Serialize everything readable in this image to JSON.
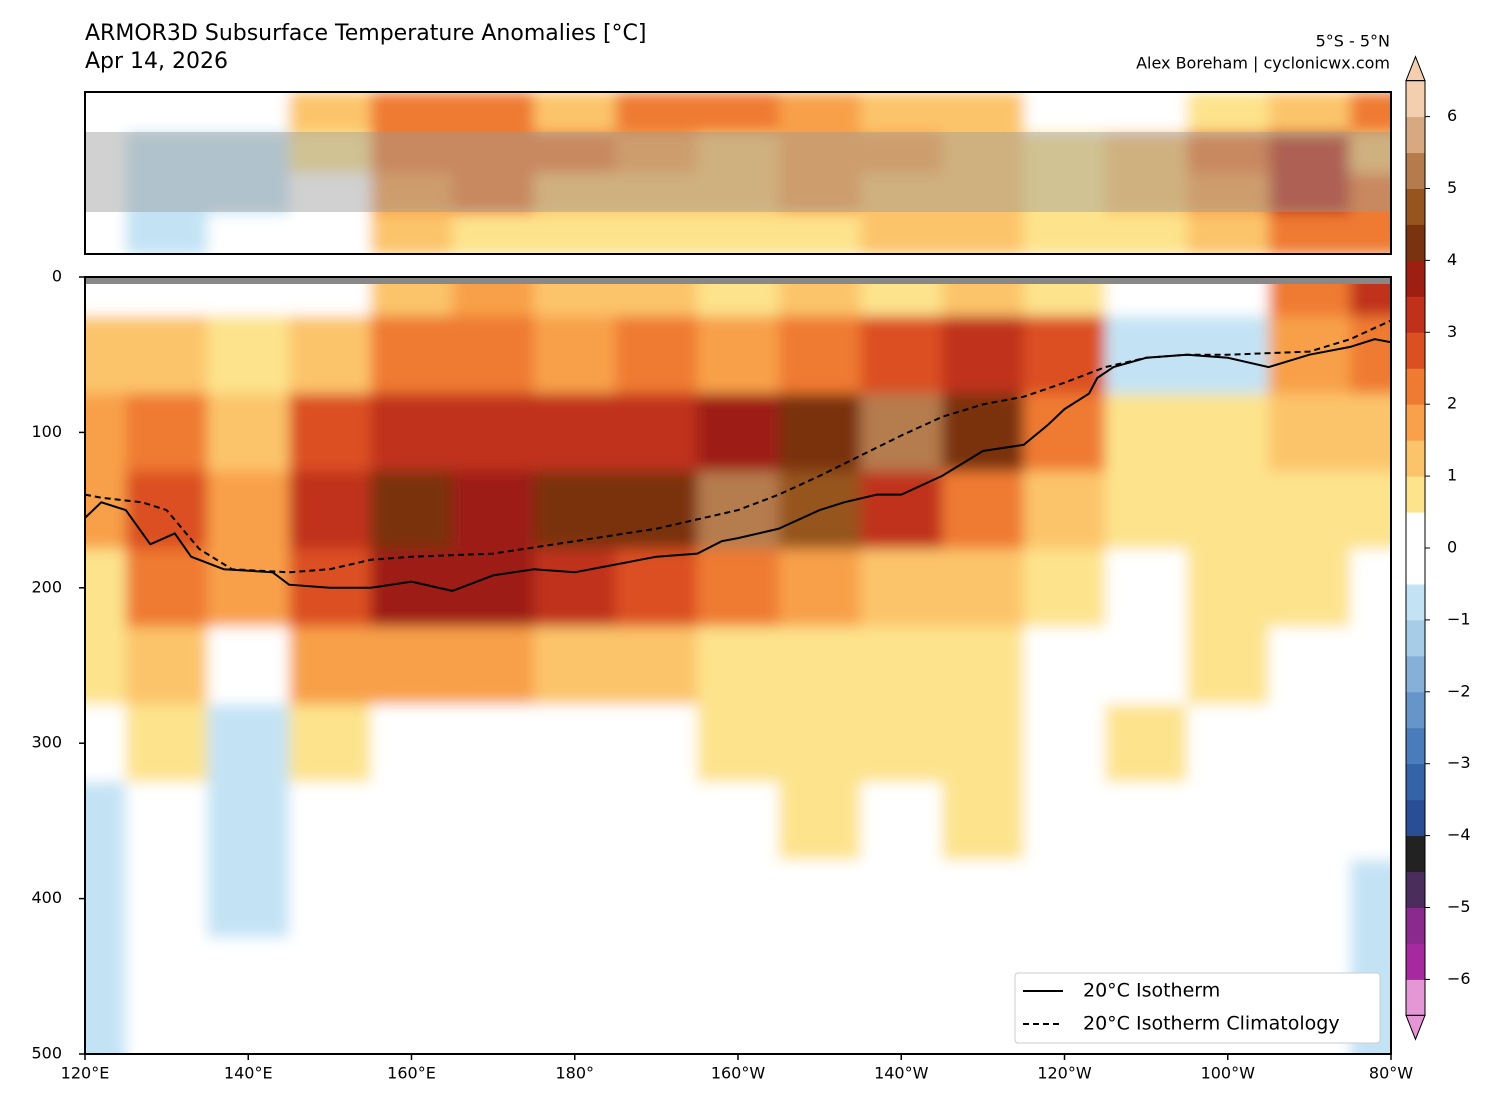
{
  "chart_data": {
    "type": "contour",
    "title": "ARMOR3D Subsurface Temperature Anomalies [°C]",
    "subtitle": "Apr 14, 2026",
    "region": "5°S - 5°N",
    "credit": "Alex Boreham | cyclonicwx.com",
    "x": [
      120,
      130,
      140,
      150,
      160,
      170,
      180,
      190,
      200,
      210,
      220,
      230,
      240,
      250,
      260,
      270,
      280
    ],
    "y": [
      0,
      50,
      100,
      150,
      200,
      250,
      300,
      350,
      400,
      450,
      500
    ],
    "z": [
      [
        0,
        1,
        1.5,
        1.5,
        0.5,
        0.5,
        0,
        -1,
        -1,
        -1,
        -1
      ],
      [
        0,
        1,
        2,
        2.5,
        2,
        1,
        0.5,
        0,
        0,
        0,
        0
      ],
      [
        0,
        0.5,
        1,
        1.5,
        1.5,
        0,
        -1,
        -1,
        -1,
        0,
        0
      ],
      [
        0,
        1,
        2.5,
        3,
        2.5,
        1.5,
        0.5,
        0,
        0,
        0,
        0
      ],
      [
        1,
        2,
        3,
        4,
        3.5,
        1.5,
        0,
        0,
        0,
        0,
        0
      ],
      [
        1.5,
        2,
        3,
        3.5,
        3.5,
        1.5,
        0,
        0,
        0,
        0,
        0
      ],
      [
        1,
        1.5,
        3,
        4,
        3,
        1,
        0,
        0,
        0,
        0,
        0
      ],
      [
        1,
        2,
        3,
        4,
        2.5,
        1,
        0,
        0,
        0,
        0,
        0
      ],
      [
        0.5,
        1.5,
        3.5,
        5,
        2,
        0.5,
        0.5,
        0,
        0,
        0,
        0
      ],
      [
        1,
        2,
        4,
        4.5,
        1.5,
        0.5,
        0.5,
        0.5,
        0,
        0,
        0
      ],
      [
        0.5,
        2.5,
        5,
        3,
        1,
        0.5,
        0.5,
        0,
        0,
        0,
        0
      ],
      [
        1,
        3,
        4,
        2,
        1,
        0.5,
        0.5,
        0.5,
        0,
        0,
        0
      ],
      [
        0.5,
        2.5,
        2,
        1,
        0.5,
        0,
        0,
        0,
        0,
        0,
        0
      ],
      [
        0,
        -1,
        0.5,
        0.5,
        0,
        0,
        0.5,
        0,
        0,
        0,
        0
      ],
      [
        0,
        -1,
        0.5,
        0.5,
        0.5,
        0.5,
        0,
        0,
        0,
        0,
        0
      ],
      [
        2,
        1.5,
        1,
        0.5,
        0.5,
        0,
        0,
        0,
        0,
        0,
        0
      ],
      [
        3,
        2,
        1,
        0.5,
        0,
        0,
        0,
        0,
        -1,
        -1,
        -1
      ]
    ],
    "map_values": [
      [
        0,
        0,
        0,
        1,
        2,
        2,
        1,
        2,
        2,
        1.5,
        1,
        1,
        0,
        0,
        0.5,
        1,
        2
      ],
      [
        0,
        -1,
        -1,
        0.5,
        2,
        2,
        2,
        1.5,
        1,
        1.5,
        1.5,
        1,
        0.5,
        1,
        2,
        3,
        1
      ],
      [
        0,
        -1,
        -1,
        0,
        1.5,
        2,
        1,
        1,
        1,
        1.5,
        1,
        1,
        0.5,
        1,
        1.5,
        3,
        2
      ],
      [
        0,
        -1,
        0,
        0,
        1,
        0.5,
        0.5,
        0.5,
        0.5,
        0.5,
        1,
        1,
        0.5,
        0.5,
        1,
        2,
        2
      ]
    ],
    "xlim": [
      120,
      280
    ],
    "xticks": [
      {
        "value": 120,
        "label": "120°E"
      },
      {
        "value": 140,
        "label": "140°E"
      },
      {
        "value": 160,
        "label": "160°E"
      },
      {
        "value": 180,
        "label": "180°"
      },
      {
        "value": 200,
        "label": "160°W"
      },
      {
        "value": 220,
        "label": "140°W"
      },
      {
        "value": 240,
        "label": "120°W"
      },
      {
        "value": 260,
        "label": "100°W"
      },
      {
        "value": 280,
        "label": "80°W"
      }
    ],
    "ylim": [
      0,
      500
    ],
    "y_inverted": true,
    "yticks": [
      0,
      100,
      200,
      300,
      400,
      500
    ],
    "levels": [
      -6.5,
      -6,
      -5.5,
      -5,
      -4.5,
      -4,
      -3.5,
      -3,
      -2.5,
      -2,
      -1.5,
      -1,
      -0.5,
      0,
      0.5,
      1,
      1.5,
      2,
      2.5,
      3,
      3.5,
      4,
      4.5,
      5,
      5.5,
      6,
      6.5
    ],
    "colors": [
      "#e596d6",
      "#a7299f",
      "#8a2a8e",
      "#4a2d5c",
      "#222222",
      "#2a4e96",
      "#3563a8",
      "#4a7cbb",
      "#6595c9",
      "#86b0d8",
      "#a6cce8",
      "#c3e3f5",
      "#ffffff",
      "#ffffff",
      "#fde38c",
      "#fcc46a",
      "#f8a04a",
      "#ef7a32",
      "#dc4f22",
      "#c0301a",
      "#9e1f12",
      "#7a3310",
      "#96541f",
      "#b57b4d",
      "#d8a880",
      "#f3cfb0"
    ],
    "cticks": [
      {
        "value": -6,
        "label": "−6"
      },
      {
        "value": -5,
        "label": "−5"
      },
      {
        "value": -4,
        "label": "−4"
      },
      {
        "value": -3,
        "label": "−3"
      },
      {
        "value": -2,
        "label": "−2"
      },
      {
        "value": -1,
        "label": "−1"
      },
      0,
      1,
      2,
      3,
      4,
      5,
      6
    ],
    "legend": "lower right",
    "series": [
      {
        "name": "20°C Isotherm",
        "color": "#000000",
        "dash": false,
        "x": [
          120,
          122,
          125,
          128,
          131,
          133,
          137,
          143,
          145,
          150,
          155,
          160,
          165,
          170,
          175,
          180,
          185,
          190,
          195,
          198,
          200,
          205,
          210,
          213,
          217,
          220,
          225,
          230,
          235,
          238,
          240,
          243,
          244,
          246,
          250,
          255,
          260,
          265,
          270,
          275,
          278,
          280
        ],
        "values": [
          155,
          145,
          150,
          172,
          165,
          180,
          188,
          190,
          198,
          200,
          200,
          196,
          202,
          192,
          188,
          190,
          185,
          180,
          178,
          170,
          168,
          162,
          150,
          145,
          140,
          140,
          128,
          112,
          108,
          95,
          85,
          75,
          65,
          58,
          52,
          50,
          52,
          58,
          50,
          45,
          40,
          42
        ]
      },
      {
        "name": "20°C Isotherm Climatology",
        "color": "#000000",
        "dash": true,
        "x": [
          120,
          122,
          127,
          130,
          134,
          138,
          145,
          150,
          155,
          160,
          170,
          180,
          190,
          200,
          205,
          210,
          215,
          220,
          225,
          230,
          235,
          240,
          245,
          250,
          255,
          260,
          270,
          275,
          280
        ],
        "values": [
          140,
          142,
          145,
          150,
          175,
          188,
          190,
          188,
          182,
          180,
          178,
          170,
          162,
          150,
          140,
          128,
          115,
          102,
          90,
          82,
          77,
          68,
          58,
          52,
          50,
          50,
          48,
          40,
          28
        ]
      }
    ]
  }
}
